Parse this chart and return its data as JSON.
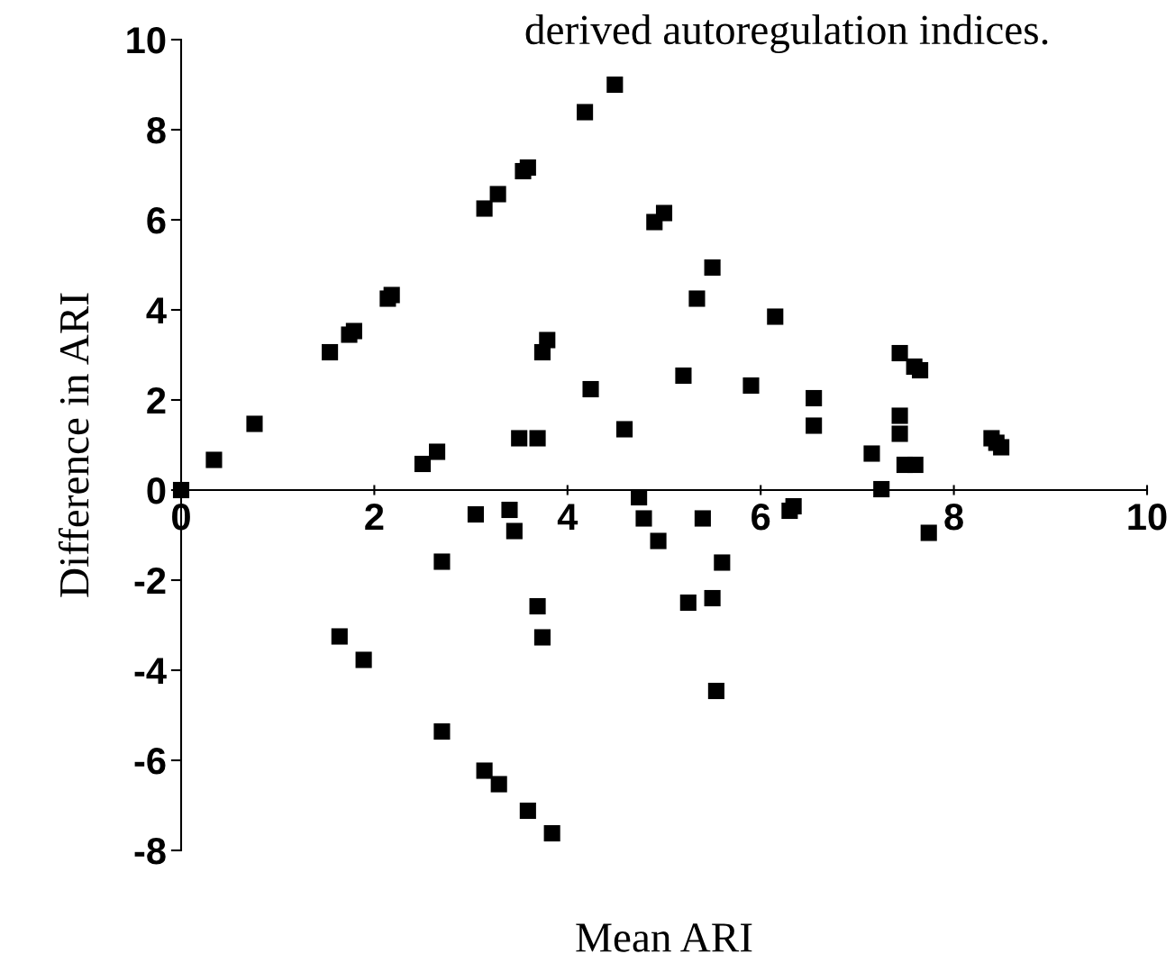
{
  "chart_data": {
    "type": "scatter",
    "title": "derived autoregulation indices.",
    "xlabel": "Mean ARI",
    "ylabel": "Difference in ARI",
    "x": [
      0,
      0.34,
      0.76,
      1.54,
      1.74,
      1.79,
      2.14,
      2.18,
      1.64,
      1.89,
      2.5,
      2.65,
      2.7,
      2.7,
      3.05,
      3.14,
      3.28,
      3.14,
      3.29,
      3.4,
      3.45,
      3.5,
      3.54,
      3.59,
      3.59,
      3.69,
      3.69,
      3.74,
      3.79,
      3.74,
      3.84,
      4.18,
      4.49,
      4.24,
      4.59,
      4.74,
      4.79,
      4.9,
      5.0,
      4.94,
      5.2,
      5.25,
      5.34,
      5.4,
      5.5,
      5.5,
      5.54,
      5.6,
      5.9,
      6.15,
      6.3,
      6.34,
      6.55,
      6.55,
      7.15,
      7.25,
      7.44,
      7.44,
      7.44,
      7.49,
      7.6,
      7.59,
      7.65,
      7.74,
      8.39,
      8.44,
      8.49
    ],
    "series": [
      {
        "color": "#000000",
        "values": [
          0,
          0.67,
          1.47,
          3.06,
          3.45,
          3.53,
          4.25,
          4.33,
          -3.25,
          -3.77,
          0.58,
          0.85,
          -1.59,
          -5.36,
          -0.54,
          6.25,
          6.57,
          -6.23,
          -6.53,
          -0.44,
          -0.91,
          1.15,
          7.08,
          7.16,
          -7.12,
          1.15,
          -2.58,
          3.06,
          3.33,
          -3.27,
          -7.62,
          8.39,
          9.0,
          2.24,
          1.35,
          -0.16,
          -0.63,
          5.95,
          6.15,
          -1.13,
          2.54,
          -2.5,
          4.25,
          -0.63,
          4.94,
          -2.4,
          -4.46,
          -1.61,
          2.32,
          3.85,
          -0.46,
          -0.36,
          2.04,
          1.43,
          0.81,
          0.02,
          3.04,
          1.65,
          1.25,
          0.56,
          0.56,
          2.74,
          2.66,
          -0.95,
          1.15,
          1.05,
          0.95
        ]
      }
    ],
    "marker": "square",
    "xlim": [
      0,
      10
    ],
    "ylim": [
      -8,
      10
    ],
    "xticks": [
      0,
      2,
      4,
      6,
      8,
      10
    ],
    "yticks": [
      -8,
      -6,
      -4,
      -2,
      0,
      2,
      4,
      6,
      8,
      10
    ],
    "grid": false,
    "legend": false
  }
}
